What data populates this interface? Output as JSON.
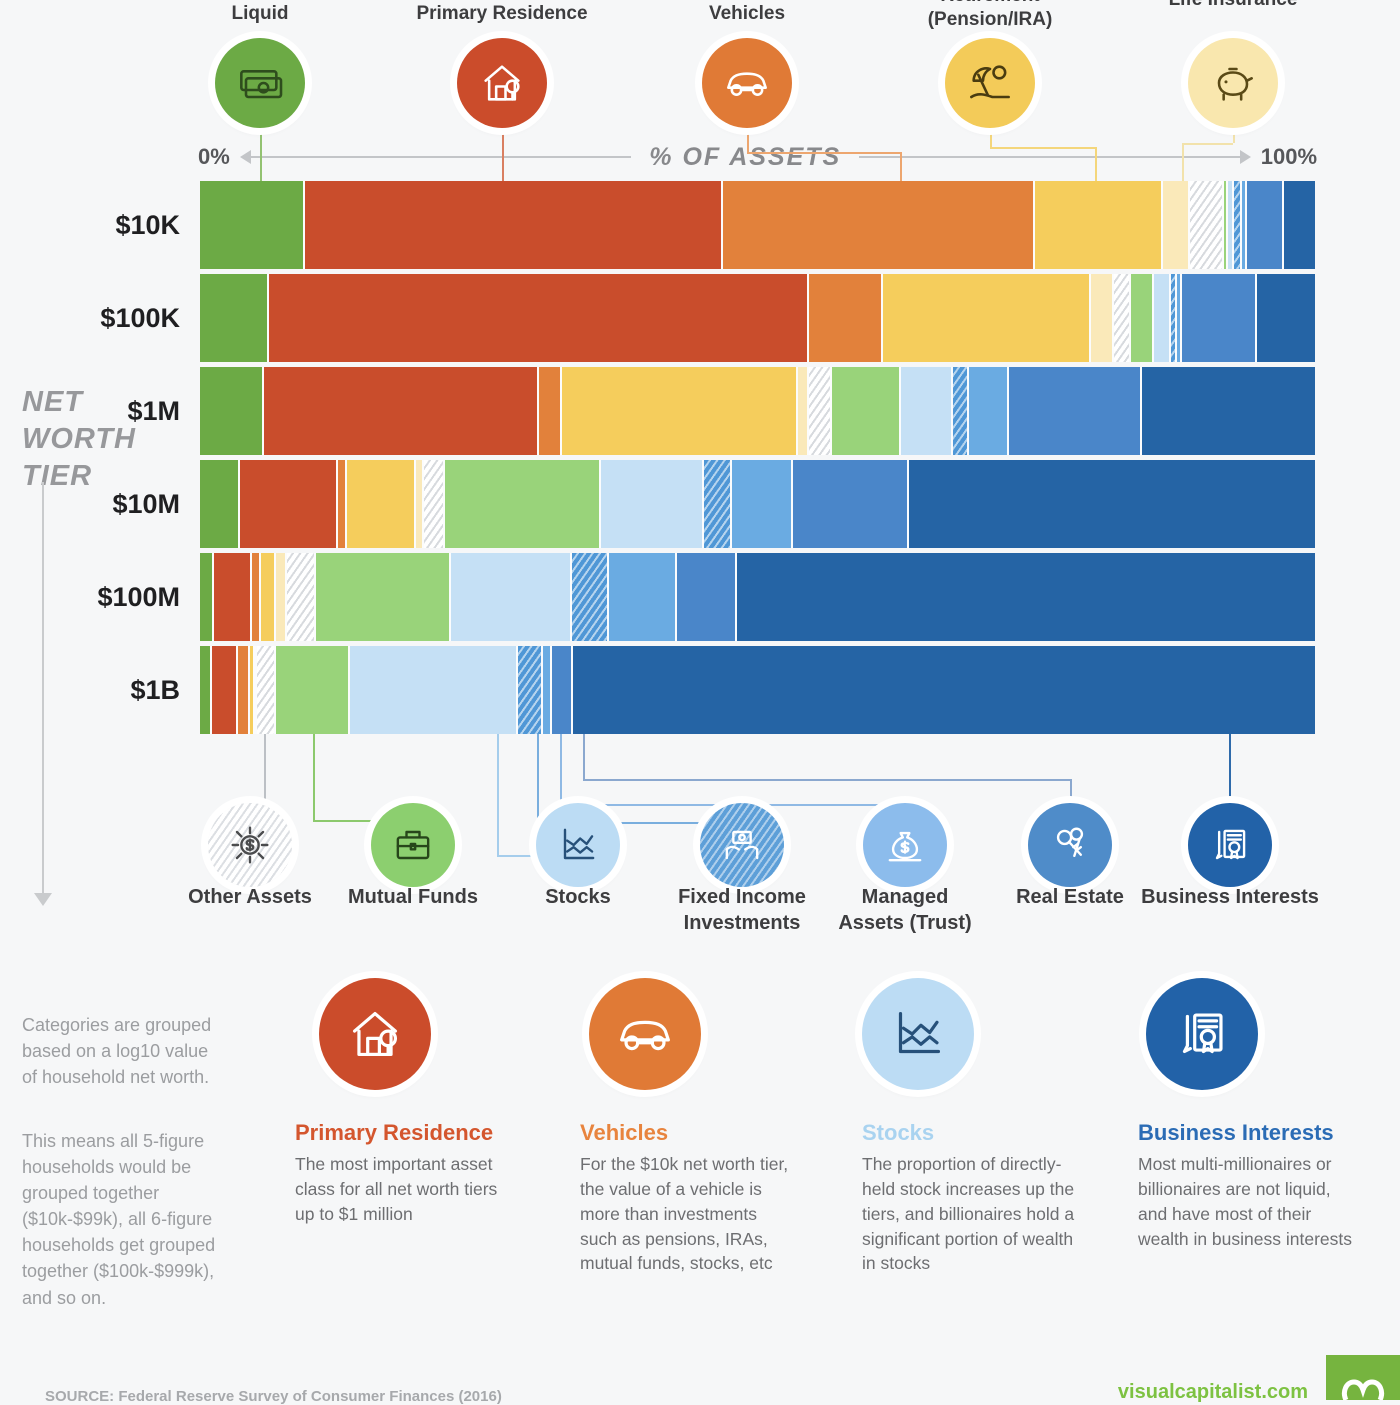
{
  "header": {
    "axis": {
      "left": "0%",
      "center": "% OF ASSETS",
      "right": "100%"
    }
  },
  "sidebar": {
    "title": "Net Worth Tier"
  },
  "top_assets": [
    {
      "label": "Liquid",
      "icon": "cash-icon",
      "color": "#6caa45",
      "ink": "#2e4d1d"
    },
    {
      "label": "Primary Residence",
      "icon": "house-icon",
      "color": "#cb4c2b",
      "ink": "#ffffff"
    },
    {
      "label": "Vehicles",
      "icon": "car-icon",
      "color": "#e07a36",
      "ink": "#ffffff"
    },
    {
      "label": "Retirement (Pension/IRA)",
      "icon": "umbrella-icon",
      "color": "#f3cb59",
      "ink": "#4a3c10"
    },
    {
      "label": "Life Insurance",
      "icon": "piggy-bank-icon",
      "color": "#f9e7ae",
      "ink": "#5a4a16"
    }
  ],
  "bottom_assets": [
    {
      "label": "Other Assets",
      "icon": "network-dollar-icon",
      "color": "hatch-gray",
      "ink": "#4b4c4e"
    },
    {
      "label": "Mutual Funds",
      "icon": "briefcase-icon",
      "color": "#8ccf6f",
      "ink": "#27461a"
    },
    {
      "label": "Stocks",
      "icon": "stock-chart-icon",
      "color": "#bcdcf4",
      "ink": "#27517a"
    },
    {
      "label": "Fixed Income Investments",
      "icon": "hands-cash-icon",
      "color": "hatch-blue",
      "ink": "#ffffff"
    },
    {
      "label": "Managed Assets (Trust)",
      "icon": "money-bag-icon",
      "color": "#8cbcec",
      "ink": "#ffffff"
    },
    {
      "label": "Real Estate",
      "icon": "keys-icon",
      "color": "#4f8cc9",
      "ink": "#ffffff"
    },
    {
      "label": "Business Interests",
      "icon": "certificate-icon",
      "color": "#2262a8",
      "ink": "#ffffff"
    }
  ],
  "chart_data": {
    "type": "bar",
    "subtype": "horizontal-stacked-100pct",
    "title": "% OF ASSETS",
    "xlabel": "% of assets",
    "ylabel": "Net worth tier",
    "xlim": [
      0,
      100
    ],
    "categories": [
      "$10K",
      "$100K",
      "$1M",
      "$10M",
      "$100M",
      "$1B"
    ],
    "segments": [
      {
        "name": "Liquid",
        "color": "#6caa45",
        "pattern": "solid"
      },
      {
        "name": "Primary Residence",
        "color": "#c94d2c",
        "pattern": "solid"
      },
      {
        "name": "Vehicles",
        "color": "#e2813b",
        "pattern": "solid"
      },
      {
        "name": "Retirement (Pension/IRA)",
        "color": "#f5cd5c",
        "pattern": "solid"
      },
      {
        "name": "Life Insurance",
        "color": "#fae9b9",
        "pattern": "solid"
      },
      {
        "name": "Other Assets",
        "color": "#ffffff",
        "pattern": "hatch-gray"
      },
      {
        "name": "Mutual Funds",
        "color": "#99d37a",
        "pattern": "solid"
      },
      {
        "name": "Stocks",
        "color": "#c5e0f5",
        "pattern": "solid"
      },
      {
        "name": "Fixed Income Investments",
        "color": "#5d9fd8",
        "pattern": "hatch-blue"
      },
      {
        "name": "Managed Assets (Trust)",
        "color": "#6aabe2",
        "pattern": "solid"
      },
      {
        "name": "Real Estate",
        "color": "#4a86c9",
        "pattern": "solid"
      },
      {
        "name": "Business Interests",
        "color": "#2564a5",
        "pattern": "solid"
      }
    ],
    "series": [
      {
        "name": "$10K",
        "values": [
          9.4,
          37.5,
          28.0,
          11.5,
          2.4,
          3.0,
          0.4,
          0.5,
          0.8,
          0.4,
          3.3,
          2.8
        ]
      },
      {
        "name": "$100K",
        "values": [
          6.2,
          48.4,
          6.7,
          18.6,
          2.1,
          1.5,
          2.1,
          1.5,
          0.5,
          0.5,
          6.7,
          5.2
        ]
      },
      {
        "name": "$1M",
        "values": [
          5.7,
          24.7,
          2.1,
          21.1,
          1.0,
          2.1,
          6.2,
          4.6,
          1.5,
          3.6,
          11.9,
          15.5
        ]
      },
      {
        "name": "$10M",
        "values": [
          3.6,
          8.8,
          0.8,
          6.2,
          0.7,
          1.9,
          14.0,
          9.2,
          2.5,
          5.5,
          10.4,
          36.4
        ]
      },
      {
        "name": "$100M",
        "values": [
          1.3,
          3.4,
          0.8,
          1.3,
          1.0,
          2.6,
          12.1,
          10.9,
          3.3,
          6.1,
          5.4,
          51.8
        ]
      },
      {
        "name": "$1B",
        "values": [
          1.1,
          2.3,
          1.1,
          0.4,
          0.2,
          1.7,
          6.7,
          15.0,
          2.3,
          0.8,
          1.9,
          66.5
        ]
      }
    ],
    "legend_position": "top-and-bottom",
    "grid": false
  },
  "notes": {
    "para1": "Categories are grouped based on a log10 value of household net worth.",
    "para2": "This means all 5-figure households would be grouped together ($10k-$99k), all 6-figure households get grouped together ($100k-$999k), and so on."
  },
  "descriptions": [
    {
      "title": "Primary Residence",
      "color": "#d4562e",
      "icon": "house-icon",
      "circle": "#cb4c2b",
      "ink": "#ffffff",
      "text": "The most important asset class for all net worth tiers up to $1 million"
    },
    {
      "title": "Vehicles",
      "color": "#e8843e",
      "icon": "car-icon",
      "circle": "#e07a36",
      "ink": "#ffffff",
      "text": "For the $10k net worth tier, the value of a vehicle is more than investments such as pensions, IRAs, mutual funds, stocks, etc"
    },
    {
      "title": "Stocks",
      "color": "#a9d3f0",
      "icon": "stock-chart-icon",
      "circle": "#bcdcf4",
      "ink": "#27517a",
      "text": "The proportion of directly-held stock increases up the tiers, and billionaires hold a significant portion of wealth in stocks"
    },
    {
      "title": "Business Interests",
      "color": "#2b6cb5",
      "icon": "certificate-icon",
      "circle": "#2262a8",
      "ink": "#ffffff",
      "text": "Most multi-millionaires or billionaires are not liquid, and have most of their wealth in business interests"
    }
  ],
  "footer": {
    "source": "SOURCE: Federal Reserve Survey of Consumer Finances (2016)",
    "site": "visualcapitalist.com",
    "brand_green": "#76b43f"
  }
}
